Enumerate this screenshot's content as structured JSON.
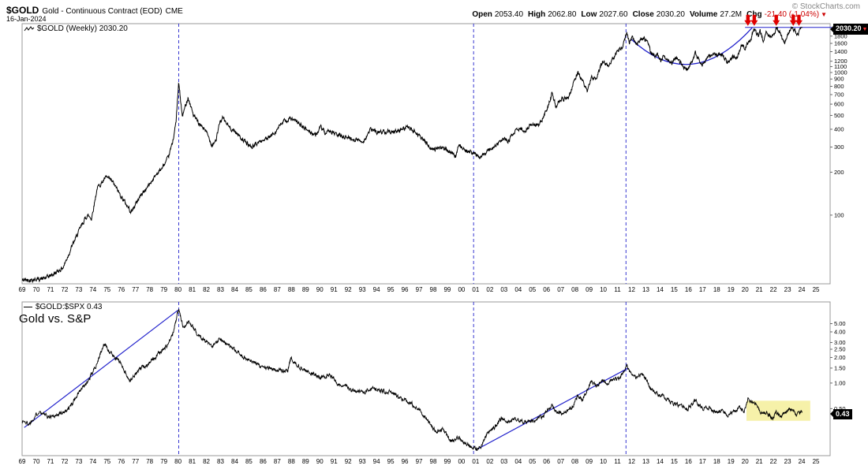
{
  "header": {
    "symbol": "$GOLD",
    "description": "Gold - Continuous Contract (EOD)",
    "exchange": "CME",
    "date": "16-Jan-2024",
    "copyright": "© StockCharts.com",
    "quote": {
      "open_label": "Open",
      "open": "2053.40",
      "high_label": "High",
      "high": "2062.80",
      "low_label": "Low",
      "low": "2027.60",
      "close_label": "Close",
      "close": "2030.20",
      "volume_label": "Volume",
      "volume": "27.2M",
      "chg_label": "Chg",
      "chg": "-21.40 (-1.04%)",
      "chg_direction": "down"
    }
  },
  "main_panel": {
    "legend": "$GOLD (Weekly) 2030.20",
    "price_badge": "2030.20"
  },
  "lower_panel": {
    "legend": "$GOLD:$SPX 0.43",
    "annotation": "Gold vs. S&P",
    "price_badge": "0.43"
  },
  "x_ticks": [
    "69",
    "70",
    "71",
    "72",
    "73",
    "74",
    "75",
    "76",
    "77",
    "78",
    "79",
    "80",
    "81",
    "82",
    "83",
    "84",
    "85",
    "86",
    "87",
    "88",
    "89",
    "90",
    "91",
    "92",
    "93",
    "94",
    "95",
    "96",
    "97",
    "98",
    "99",
    "00",
    "01",
    "02",
    "03",
    "04",
    "05",
    "06",
    "07",
    "08",
    "09",
    "10",
    "11",
    "12",
    "13",
    "14",
    "15",
    "16",
    "17",
    "18",
    "19",
    "20",
    "21",
    "22",
    "23",
    "24",
    "25"
  ],
  "colors": {
    "line": "#000000",
    "annotation_blue": "#2222cc",
    "arrow_red": "#e00000",
    "highlight_yellow": "#f5efa0",
    "badge_bg": "#000000",
    "badge_text": "#ffffff",
    "chg_red": "#cc0000",
    "border_gray": "#999999"
  },
  "chart_data": [
    {
      "panel": "main",
      "type": "line",
      "symbol": "$GOLD",
      "timeframe": "Weekly",
      "last": 2030.2,
      "scale": "log",
      "x_range": [
        1969,
        2026
      ],
      "y_range": [
        33,
        2200
      ],
      "y_ticks": [
        1800,
        1600,
        1400,
        1200,
        1100,
        1000,
        900,
        800,
        700,
        600,
        500,
        400,
        300,
        200,
        100
      ],
      "anchors": [
        [
          1969,
          35
        ],
        [
          1970,
          35.5
        ],
        [
          1970.6,
          36
        ],
        [
          1971.3,
          39
        ],
        [
          1971.9,
          43
        ],
        [
          1972.5,
          60
        ],
        [
          1973.2,
          85
        ],
        [
          1973.6,
          100
        ],
        [
          1973.9,
          95
        ],
        [
          1974.3,
          155
        ],
        [
          1974.95,
          185
        ],
        [
          1975.4,
          170
        ],
        [
          1975.9,
          140
        ],
        [
          1976.7,
          105
        ],
        [
          1977.3,
          135
        ],
        [
          1977.9,
          160
        ],
        [
          1978.5,
          195
        ],
        [
          1978.9,
          215
        ],
        [
          1979.3,
          250
        ],
        [
          1979.6,
          320
        ],
        [
          1979.85,
          440
        ],
        [
          1980.05,
          850
        ],
        [
          1980.3,
          490
        ],
        [
          1980.7,
          670
        ],
        [
          1981.1,
          500
        ],
        [
          1981.5,
          430
        ],
        [
          1981.9,
          400
        ],
        [
          1982.4,
          310
        ],
        [
          1982.7,
          340
        ],
        [
          1982.95,
          450
        ],
        [
          1983.15,
          480
        ],
        [
          1983.6,
          415
        ],
        [
          1984.1,
          380
        ],
        [
          1984.8,
          320
        ],
        [
          1985.2,
          300
        ],
        [
          1985.8,
          330
        ],
        [
          1986.4,
          345
        ],
        [
          1986.9,
          390
        ],
        [
          1987.4,
          450
        ],
        [
          1987.95,
          475
        ],
        [
          1988.5,
          440
        ],
        [
          1989.1,
          395
        ],
        [
          1989.7,
          365
        ],
        [
          1990.1,
          415
        ],
        [
          1990.45,
          360
        ],
        [
          1990.65,
          395
        ],
        [
          1991.2,
          365
        ],
        [
          1991.8,
          355
        ],
        [
          1992.4,
          340
        ],
        [
          1993.1,
          330
        ],
        [
          1993.6,
          400
        ],
        [
          1994.1,
          380
        ],
        [
          1994.8,
          390
        ],
        [
          1995.5,
          385
        ],
        [
          1996.1,
          415
        ],
        [
          1996.8,
          380
        ],
        [
          1997.4,
          330
        ],
        [
          1997.95,
          288
        ],
        [
          1998.4,
          300
        ],
        [
          1998.9,
          290
        ],
        [
          1999.6,
          255
        ],
        [
          1999.8,
          320
        ],
        [
          2000.2,
          285
        ],
        [
          2000.8,
          272
        ],
        [
          2001.3,
          258
        ],
        [
          2001.8,
          278
        ],
        [
          2002.4,
          305
        ],
        [
          2002.95,
          345
        ],
        [
          2003.3,
          330
        ],
        [
          2003.95,
          410
        ],
        [
          2004.4,
          385
        ],
        [
          2004.95,
          440
        ],
        [
          2005.5,
          425
        ],
        [
          2006.0,
          550
        ],
        [
          2006.4,
          720
        ],
        [
          2006.65,
          580
        ],
        [
          2007.1,
          650
        ],
        [
          2007.6,
          680
        ],
        [
          2008.0,
          900
        ],
        [
          2008.2,
          1000
        ],
        [
          2008.55,
          870
        ],
        [
          2008.85,
          730
        ],
        [
          2009.15,
          920
        ],
        [
          2009.5,
          930
        ],
        [
          2009.95,
          1200
        ],
        [
          2010.3,
          1110
        ],
        [
          2010.7,
          1250
        ],
        [
          2011.0,
          1400
        ],
        [
          2011.35,
          1480
        ],
        [
          2011.65,
          1900
        ],
        [
          2011.85,
          1620
        ],
        [
          2012.0,
          1750
        ],
        [
          2012.4,
          1590
        ],
        [
          2012.75,
          1780
        ],
        [
          2013.1,
          1650
        ],
        [
          2013.35,
          1380
        ],
        [
          2013.65,
          1290
        ],
        [
          2013.85,
          1340
        ],
        [
          2014.05,
          1210
        ],
        [
          2014.25,
          1330
        ],
        [
          2014.85,
          1150
        ],
        [
          2015.1,
          1280
        ],
        [
          2015.6,
          1120
        ],
        [
          2015.95,
          1050
        ],
        [
          2016.5,
          1360
        ],
        [
          2016.95,
          1130
        ],
        [
          2017.35,
          1260
        ],
        [
          2017.7,
          1350
        ],
        [
          2018.05,
          1320
        ],
        [
          2018.35,
          1350
        ],
        [
          2018.75,
          1180
        ],
        [
          2019.15,
          1290
        ],
        [
          2019.45,
          1280
        ],
        [
          2019.75,
          1550
        ],
        [
          2019.95,
          1480
        ],
        [
          2020.2,
          1590
        ],
        [
          2020.45,
          1750
        ],
        [
          2020.6,
          2065
        ],
        [
          2020.95,
          1780
        ],
        [
          2021.05,
          1950
        ],
        [
          2021.3,
          1685
        ],
        [
          2021.5,
          1900
        ],
        [
          2021.75,
          1750
        ],
        [
          2022.0,
          1810
        ],
        [
          2022.2,
          2060
        ],
        [
          2022.5,
          1840
        ],
        [
          2022.8,
          1630
        ],
        [
          2023.1,
          1940
        ],
        [
          2023.35,
          2050
        ],
        [
          2023.6,
          1915
        ],
        [
          2023.75,
          1830
        ],
        [
          2023.95,
          2080
        ],
        [
          2024.05,
          2030
        ]
      ],
      "annotations": {
        "dashed_vlines_years": [
          1980.05,
          2000.85,
          2011.6
        ],
        "resistance_line": {
          "price": 2070,
          "from_year": 2020.0
        },
        "saucer": {
          "from": [
            2012.0,
            1700
          ],
          "control": [
            2016.2,
            700
          ],
          "to": [
            2020.5,
            2060
          ]
        },
        "down_arrows_years": [
          2020.2,
          2020.65,
          2022.2,
          2023.4,
          2023.8
        ]
      }
    },
    {
      "panel": "lower",
      "type": "line",
      "symbol": "$GOLD:$SPX",
      "timeframe": "Weekly",
      "last": 0.43,
      "scale": "log",
      "x_range": [
        1969,
        2026
      ],
      "y_range": [
        0.14,
        9
      ],
      "y_ticks": [
        5.0,
        4.0,
        3.0,
        2.5,
        2.0,
        1.5,
        1.0,
        0.5
      ],
      "anchors": [
        [
          1969,
          0.36
        ],
        [
          1969.5,
          0.33
        ],
        [
          1970.2,
          0.47
        ],
        [
          1970.8,
          0.4
        ],
        [
          1971.5,
          0.42
        ],
        [
          1972.3,
          0.5
        ],
        [
          1973.0,
          0.78
        ],
        [
          1973.6,
          1.0
        ],
        [
          1974.2,
          1.6
        ],
        [
          1974.8,
          2.9
        ],
        [
          1975.3,
          2.2
        ],
        [
          1975.9,
          1.8
        ],
        [
          1976.6,
          1.05
        ],
        [
          1977.3,
          1.45
        ],
        [
          1978.2,
          1.85
        ],
        [
          1978.7,
          2.3
        ],
        [
          1979.2,
          2.7
        ],
        [
          1979.6,
          3.6
        ],
        [
          1980.05,
          7.4
        ],
        [
          1980.35,
          4.6
        ],
        [
          1980.75,
          5.3
        ],
        [
          1981.3,
          3.9
        ],
        [
          1981.8,
          3.3
        ],
        [
          1982.4,
          2.6
        ],
        [
          1982.95,
          3.4
        ],
        [
          1983.4,
          2.9
        ],
        [
          1984.0,
          2.4
        ],
        [
          1984.7,
          2.0
        ],
        [
          1985.3,
          1.75
        ],
        [
          1986.0,
          1.55
        ],
        [
          1986.6,
          1.45
        ],
        [
          1987.3,
          1.42
        ],
        [
          1987.75,
          1.38
        ],
        [
          1987.95,
          1.95
        ],
        [
          1988.5,
          1.6
        ],
        [
          1989.2,
          1.35
        ],
        [
          1989.8,
          1.22
        ],
        [
          1990.3,
          1.15
        ],
        [
          1990.7,
          1.28
        ],
        [
          1991.3,
          0.97
        ],
        [
          1992.0,
          0.87
        ],
        [
          1992.6,
          0.8
        ],
        [
          1993.1,
          0.76
        ],
        [
          1993.7,
          0.87
        ],
        [
          1994.3,
          0.82
        ],
        [
          1995.0,
          0.79
        ],
        [
          1995.7,
          0.66
        ],
        [
          1996.2,
          0.62
        ],
        [
          1996.9,
          0.51
        ],
        [
          1997.6,
          0.37
        ],
        [
          1998.2,
          0.27
        ],
        [
          1998.7,
          0.29
        ],
        [
          1999.3,
          0.205
        ],
        [
          1999.8,
          0.235
        ],
        [
          2000.3,
          0.19
        ],
        [
          2000.9,
          0.175
        ],
        [
          2001.2,
          0.162
        ],
        [
          2001.8,
          0.25
        ],
        [
          2002.3,
          0.3
        ],
        [
          2002.8,
          0.385
        ],
        [
          2003.2,
          0.34
        ],
        [
          2003.8,
          0.385
        ],
        [
          2004.3,
          0.355
        ],
        [
          2005.0,
          0.36
        ],
        [
          2005.8,
          0.42
        ],
        [
          2006.35,
          0.55
        ],
        [
          2006.7,
          0.46
        ],
        [
          2007.3,
          0.44
        ],
        [
          2007.9,
          0.55
        ],
        [
          2008.2,
          0.72
        ],
        [
          2008.5,
          0.64
        ],
        [
          2008.85,
          0.83
        ],
        [
          2009.15,
          1.05
        ],
        [
          2009.5,
          0.92
        ],
        [
          2009.9,
          1.06
        ],
        [
          2010.3,
          1.0
        ],
        [
          2010.7,
          1.12
        ],
        [
          2011.1,
          1.1
        ],
        [
          2011.65,
          1.6
        ],
        [
          2011.9,
          1.32
        ],
        [
          2012.35,
          1.15
        ],
        [
          2012.8,
          1.26
        ],
        [
          2013.4,
          0.85
        ],
        [
          2013.9,
          0.72
        ],
        [
          2014.3,
          0.7
        ],
        [
          2014.9,
          0.57
        ],
        [
          2015.4,
          0.55
        ],
        [
          2015.95,
          0.5
        ],
        [
          2016.5,
          0.63
        ],
        [
          2016.95,
          0.5
        ],
        [
          2017.5,
          0.52
        ],
        [
          2017.95,
          0.46
        ],
        [
          2018.4,
          0.48
        ],
        [
          2018.75,
          0.42
        ],
        [
          2019.1,
          0.46
        ],
        [
          2019.6,
          0.51
        ],
        [
          2019.95,
          0.465
        ],
        [
          2020.2,
          0.66
        ],
        [
          2020.6,
          0.6
        ],
        [
          2020.95,
          0.49
        ],
        [
          2021.2,
          0.44
        ],
        [
          2021.5,
          0.45
        ],
        [
          2021.9,
          0.385
        ],
        [
          2022.2,
          0.45
        ],
        [
          2022.5,
          0.41
        ],
        [
          2022.8,
          0.46
        ],
        [
          2023.05,
          0.49
        ],
        [
          2023.3,
          0.5
        ],
        [
          2023.6,
          0.42
        ],
        [
          2023.8,
          0.445
        ],
        [
          2023.95,
          0.47
        ],
        [
          2024.05,
          0.43
        ]
      ],
      "annotations": {
        "dashed_vlines_years": [
          1980.05,
          2000.85,
          2011.6
        ],
        "trendlines": [
          {
            "from": [
              1969.15,
              0.3
            ],
            "to": [
              1980.0,
              7.2
            ]
          },
          {
            "from": [
              2001.0,
              0.163
            ],
            "to": [
              2011.75,
              1.5
            ]
          }
        ],
        "highlight_box": {
          "x": [
            2020.1,
            2024.6
          ],
          "y": [
            0.36,
            0.62
          ]
        }
      }
    }
  ]
}
